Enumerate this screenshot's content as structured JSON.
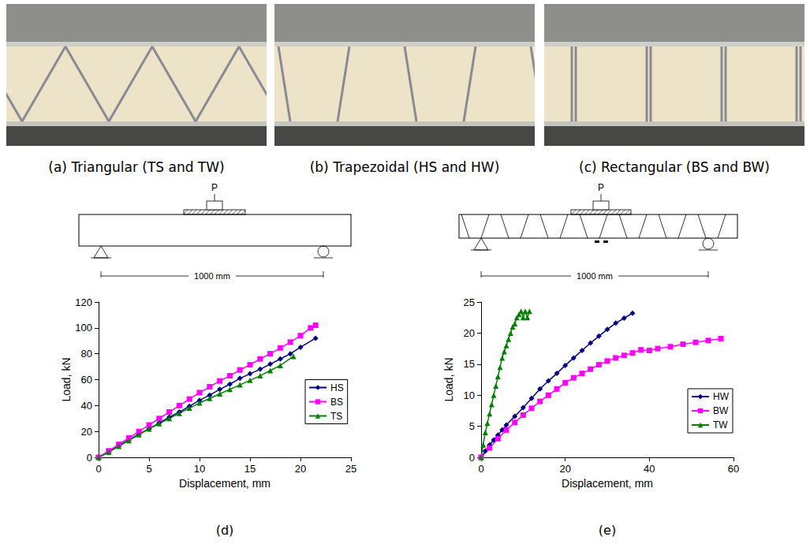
{
  "photos": [
    {
      "caption": "(a) Triangular (TS and TW)"
    },
    {
      "caption": "(b) Trapezoidal (HS and HW)"
    },
    {
      "caption": "(c) Rectangular (BS and BW)"
    }
  ],
  "schematics": [
    {
      "load": "P",
      "span": "1000 mm"
    },
    {
      "load": "P",
      "span": "1000 mm"
    }
  ],
  "chart_data": [
    {
      "type": "line",
      "title": "(d)",
      "x_label": "Displacement, mm",
      "y_label": "Load, kN",
      "xlim": [
        0,
        25
      ],
      "xticks": [
        0,
        5,
        10,
        15,
        20,
        25
      ],
      "ylim": [
        0,
        120
      ],
      "yticks": [
        0,
        20,
        40,
        60,
        80,
        100,
        120
      ],
      "grid": false,
      "legend": "right",
      "series": [
        {
          "name": "HS",
          "color": "#000080",
          "marker": "diamond",
          "x": [
            0,
            1,
            2,
            3,
            4,
            5,
            6,
            7,
            8,
            9,
            10,
            11,
            12,
            13,
            14,
            15,
            16,
            17,
            18,
            19,
            20,
            21.5
          ],
          "values": [
            0,
            4,
            9,
            13.5,
            18,
            22,
            26.5,
            31,
            35,
            39.5,
            44,
            48,
            52.5,
            56.5,
            61,
            64.5,
            68,
            72,
            76,
            80,
            85,
            92
          ]
        },
        {
          "name": "BS",
          "color": "#FF00FF",
          "marker": "square",
          "x": [
            0,
            1,
            2,
            3,
            4,
            5,
            6,
            7,
            8,
            9,
            10,
            11,
            12,
            13,
            14,
            15,
            16,
            17,
            18,
            19,
            20,
            21,
            21.5
          ],
          "values": [
            0,
            5,
            10,
            15,
            20,
            25,
            30,
            35,
            40,
            45,
            50,
            54.5,
            59,
            63,
            67.5,
            71.5,
            76,
            80,
            84.5,
            89,
            94,
            100,
            102
          ]
        },
        {
          "name": "TS",
          "color": "#008000",
          "marker": "triangle",
          "x": [
            0,
            1,
            2,
            3,
            4,
            5,
            6,
            7,
            8,
            9,
            10,
            11,
            12,
            13,
            14,
            15,
            16,
            17,
            18,
            19.3
          ],
          "values": [
            0,
            4,
            8.5,
            13,
            17.5,
            22,
            26,
            30,
            34,
            38,
            42,
            45.5,
            49,
            52.5,
            56,
            59.5,
            63,
            67,
            71,
            78
          ]
        }
      ]
    },
    {
      "type": "line",
      "title": "(e)",
      "x_label": "Displacement, mm",
      "y_label": "Load, kN",
      "xlim": [
        0,
        60
      ],
      "xticks": [
        0,
        20,
        40,
        60
      ],
      "ylim": [
        0,
        25
      ],
      "yticks": [
        0,
        5,
        10,
        15,
        20,
        25
      ],
      "grid": false,
      "legend": "lower right",
      "series": [
        {
          "name": "HW",
          "color": "#000080",
          "marker": "diamond",
          "x": [
            0,
            1,
            2,
            3,
            4,
            5,
            6,
            8,
            10,
            12,
            14,
            16,
            18,
            20,
            22,
            24,
            26,
            28,
            30,
            32,
            34,
            36
          ],
          "values": [
            0,
            1,
            2,
            2.8,
            3.6,
            4.4,
            5.2,
            6.6,
            8,
            9.5,
            11,
            12.3,
            13.5,
            14.8,
            16,
            17.2,
            18.4,
            19.5,
            20.6,
            21.6,
            22.4,
            23.2
          ]
        },
        {
          "name": "BW",
          "color": "#FF00FF",
          "marker": "square",
          "x": [
            0,
            2,
            4,
            6,
            8,
            10,
            12,
            14,
            16,
            18,
            20,
            22,
            24,
            26,
            28,
            30,
            32,
            34,
            36,
            38,
            40,
            42,
            45,
            48,
            51,
            54,
            57
          ],
          "values": [
            0,
            1.5,
            3,
            4.4,
            5.6,
            6.8,
            7.9,
            9,
            10,
            11,
            12,
            12.8,
            13.5,
            14.2,
            14.9,
            15.5,
            16,
            16.4,
            16.8,
            17.3,
            17.2,
            17.5,
            17.8,
            18.2,
            18.5,
            18.8,
            19.1
          ]
        },
        {
          "name": "TW",
          "color": "#008000",
          "marker": "triangle",
          "x": [
            0,
            0.5,
            1,
            1.5,
            2,
            2.5,
            3,
            3.5,
            4,
            4.5,
            5,
            5.5,
            6,
            6.5,
            7,
            7.5,
            8,
            8.5,
            9,
            9.5,
            10,
            10.5,
            11,
            11.5
          ],
          "values": [
            0,
            2,
            4,
            5.5,
            7,
            8.5,
            10,
            11.5,
            13,
            14.5,
            16,
            17,
            18,
            19,
            20,
            21,
            21.5,
            22.5,
            23,
            23.5,
            22.5,
            23.5,
            22.5,
            23.5
          ]
        }
      ]
    }
  ]
}
